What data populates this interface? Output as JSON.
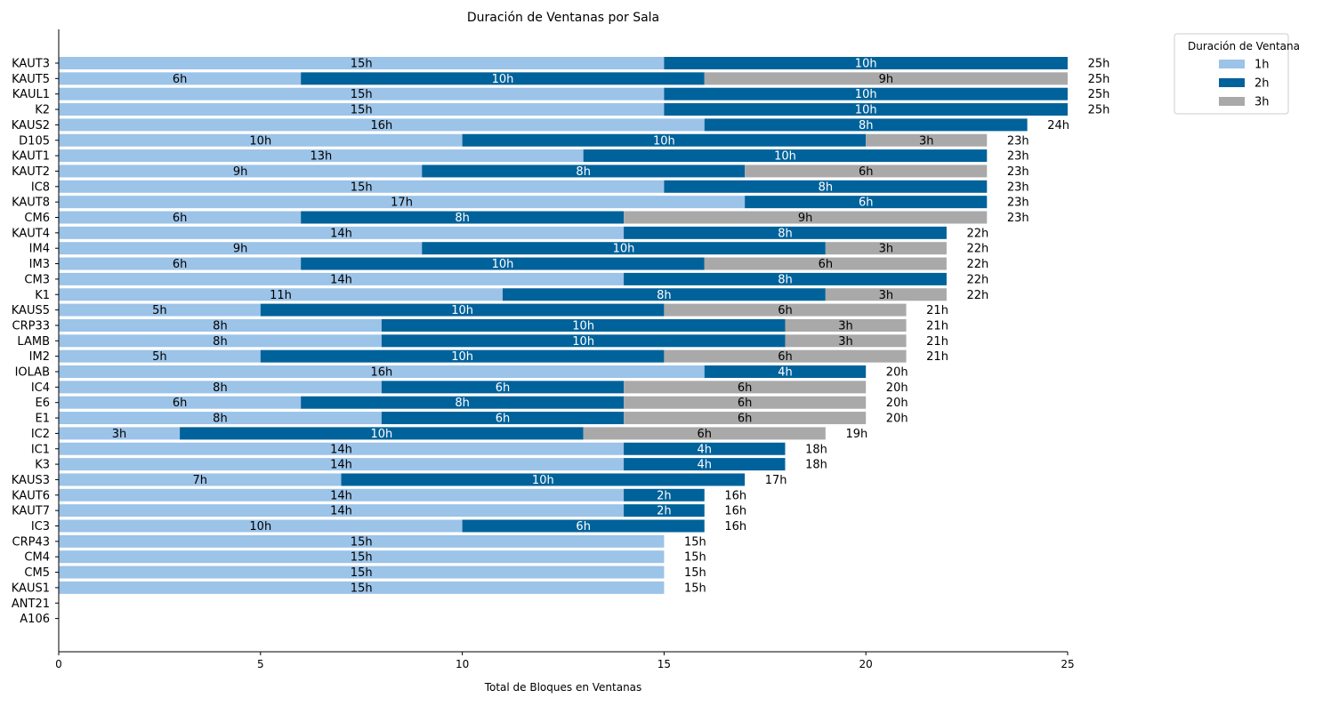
{
  "chart_data": {
    "type": "bar",
    "orientation": "horizontal",
    "stacked": true,
    "title": "Duración de Ventanas por Sala",
    "xlabel": "Total de Bloques en Ventanas",
    "ylabel": "",
    "xlim": [
      0,
      25
    ],
    "xticks": [
      0,
      5,
      10,
      15,
      20,
      25
    ],
    "grid": false,
    "legend": {
      "title": "Duración de Ventana",
      "placement": "outside-top-right"
    },
    "categories": [
      "KAUT3",
      "KAUT5",
      "KAUL1",
      "K2",
      "KAUS2",
      "D105",
      "KAUT1",
      "KAUT2",
      "IC8",
      "KAUT8",
      "CM6",
      "KAUT4",
      "IM4",
      "IM3",
      "CM3",
      "K1",
      "KAUS5",
      "CRP33",
      "LAMB",
      "IM2",
      "IOLAB",
      "IC4",
      "E6",
      "E1",
      "IC2",
      "IC1",
      "K3",
      "KAUS3",
      "KAUT6",
      "KAUT7",
      "IC3",
      "CRP43",
      "CM4",
      "CM5",
      "KAUS1",
      "ANT21",
      "A106"
    ],
    "series": [
      {
        "name": "1h",
        "color": "#9cc3e8",
        "label_color": "#000000",
        "values": [
          15,
          6,
          15,
          15,
          16,
          10,
          13,
          9,
          15,
          17,
          6,
          14,
          9,
          6,
          14,
          11,
          5,
          8,
          8,
          5,
          16,
          8,
          6,
          8,
          3,
          14,
          14,
          7,
          14,
          14,
          10,
          15,
          15,
          15,
          15,
          0,
          0
        ]
      },
      {
        "name": "2h",
        "color": "#00629b",
        "label_color": "#ffffff",
        "values": [
          10,
          10,
          10,
          10,
          8,
          10,
          10,
          8,
          8,
          6,
          8,
          8,
          10,
          10,
          8,
          8,
          10,
          10,
          10,
          10,
          4,
          6,
          8,
          6,
          10,
          4,
          4,
          10,
          2,
          2,
          6,
          0,
          0,
          0,
          0,
          0,
          0
        ]
      },
      {
        "name": "3h",
        "color": "#a9a9a9",
        "label_color": "#000000",
        "values": [
          0,
          9,
          0,
          0,
          0,
          3,
          0,
          6,
          0,
          0,
          9,
          0,
          3,
          6,
          0,
          3,
          6,
          3,
          3,
          6,
          0,
          6,
          6,
          6,
          6,
          0,
          0,
          0,
          0,
          0,
          0,
          0,
          0,
          0,
          0,
          0,
          0
        ]
      }
    ],
    "totals": [
      25,
      25,
      25,
      25,
      24,
      23,
      23,
      23,
      23,
      23,
      23,
      22,
      22,
      22,
      22,
      22,
      21,
      21,
      21,
      21,
      20,
      20,
      20,
      20,
      19,
      18,
      18,
      17,
      16,
      16,
      16,
      15,
      15,
      15,
      15,
      0,
      0
    ],
    "value_suffix": "h"
  }
}
